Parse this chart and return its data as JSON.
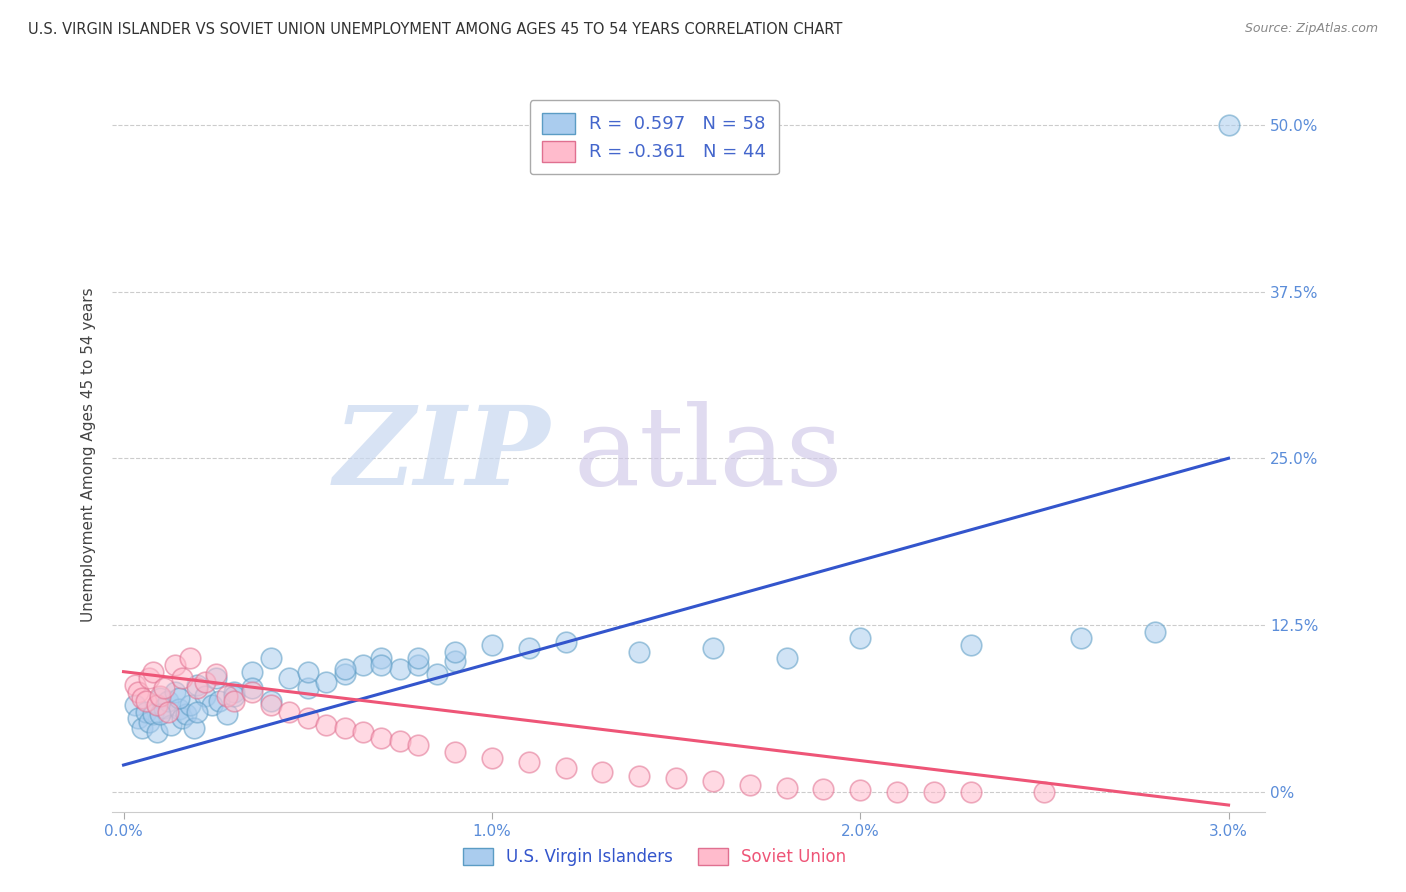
{
  "title": "U.S. VIRGIN ISLANDER VS SOVIET UNION UNEMPLOYMENT AMONG AGES 45 TO 54 YEARS CORRELATION CHART",
  "source": "Source: ZipAtlas.com",
  "ylabel": "Unemployment Among Ages 45 to 54 years",
  "xlabel_ticks": [
    "0.0%",
    "1.0%",
    "2.0%",
    "3.0%"
  ],
  "xlabel_vals": [
    0.0,
    0.01,
    0.02,
    0.03
  ],
  "ytick_labels": [
    "50.0%",
    "37.5%",
    "25.0%",
    "12.5%",
    "0%"
  ],
  "ytick_vals": [
    0.5,
    0.375,
    0.25,
    0.125,
    0.0
  ],
  "xlim": [
    -0.0003,
    0.031
  ],
  "ylim": [
    -0.015,
    0.52
  ],
  "vi_color": "#7bafd4",
  "vi_edge_color": "#5b9cc4",
  "su_color": "#f4a0b0",
  "su_edge_color": "#e07090",
  "vi_R": 0.597,
  "vi_N": 58,
  "su_R": -0.361,
  "su_N": 44,
  "legend_label_vi": "U.S. Virgin Islanders",
  "legend_label_su": "Soviet Union",
  "watermark_zip": "ZIP",
  "watermark_atlas": "atlas",
  "title_color": "#333333",
  "source_color": "#888888",
  "tick_color": "#5b8dd9",
  "ylabel_color": "#444444",
  "legend_text_color": "#333333",
  "legend_rn_color": "#4466cc",
  "grid_color": "#cccccc",
  "vi_line_x0": 0.0,
  "vi_line_x1": 0.03,
  "vi_line_y0": 0.02,
  "vi_line_y1": 0.25,
  "su_line_x0": 0.0,
  "su_line_x1": 0.03,
  "su_line_y0": 0.09,
  "su_line_y1": -0.01,
  "vi_scatter_x": [
    0.0003,
    0.0004,
    0.0005,
    0.0006,
    0.0007,
    0.0008,
    0.0009,
    0.001,
    0.0011,
    0.0012,
    0.0013,
    0.0014,
    0.0015,
    0.0016,
    0.0017,
    0.0018,
    0.0019,
    0.002,
    0.0022,
    0.0024,
    0.0026,
    0.0028,
    0.003,
    0.0035,
    0.004,
    0.0045,
    0.005,
    0.0055,
    0.006,
    0.0065,
    0.007,
    0.0075,
    0.008,
    0.0085,
    0.009,
    0.001,
    0.0015,
    0.002,
    0.0025,
    0.003,
    0.0035,
    0.004,
    0.005,
    0.006,
    0.007,
    0.008,
    0.009,
    0.01,
    0.011,
    0.012,
    0.014,
    0.016,
    0.018,
    0.02,
    0.023,
    0.026,
    0.028,
    0.03
  ],
  "vi_scatter_y": [
    0.065,
    0.055,
    0.048,
    0.06,
    0.052,
    0.058,
    0.045,
    0.07,
    0.063,
    0.068,
    0.05,
    0.075,
    0.062,
    0.055,
    0.058,
    0.065,
    0.048,
    0.08,
    0.072,
    0.065,
    0.068,
    0.058,
    0.075,
    0.09,
    0.1,
    0.085,
    0.078,
    0.082,
    0.088,
    0.095,
    0.1,
    0.092,
    0.095,
    0.088,
    0.098,
    0.058,
    0.07,
    0.06,
    0.085,
    0.072,
    0.078,
    0.068,
    0.09,
    0.092,
    0.095,
    0.1,
    0.105,
    0.11,
    0.108,
    0.112,
    0.105,
    0.108,
    0.1,
    0.115,
    0.11,
    0.115,
    0.12,
    0.5
  ],
  "su_scatter_x": [
    0.0003,
    0.0004,
    0.0005,
    0.0006,
    0.0007,
    0.0008,
    0.0009,
    0.001,
    0.0011,
    0.0012,
    0.0014,
    0.0016,
    0.0018,
    0.002,
    0.0022,
    0.0025,
    0.0028,
    0.003,
    0.0035,
    0.004,
    0.0045,
    0.005,
    0.0055,
    0.006,
    0.0065,
    0.007,
    0.0075,
    0.008,
    0.009,
    0.01,
    0.011,
    0.012,
    0.013,
    0.014,
    0.015,
    0.016,
    0.017,
    0.018,
    0.019,
    0.02,
    0.021,
    0.022,
    0.023,
    0.025
  ],
  "su_scatter_y": [
    0.08,
    0.075,
    0.07,
    0.068,
    0.085,
    0.09,
    0.065,
    0.072,
    0.078,
    0.06,
    0.095,
    0.085,
    0.1,
    0.078,
    0.082,
    0.088,
    0.072,
    0.068,
    0.075,
    0.065,
    0.06,
    0.055,
    0.05,
    0.048,
    0.045,
    0.04,
    0.038,
    0.035,
    0.03,
    0.025,
    0.022,
    0.018,
    0.015,
    0.012,
    0.01,
    0.008,
    0.005,
    0.003,
    0.002,
    0.001,
    0.0,
    0.0,
    0.0,
    0.0
  ]
}
